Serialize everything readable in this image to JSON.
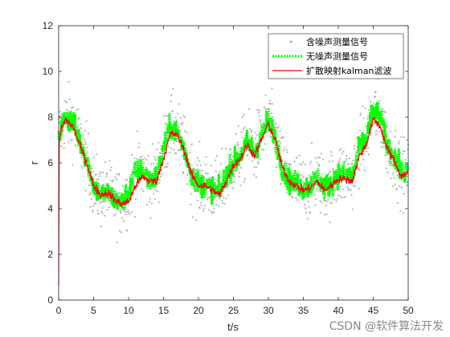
{
  "chart_data": {
    "type": "line",
    "xlabel": "t/s",
    "ylabel": "r",
    "xlim": [
      0,
      50
    ],
    "ylim": [
      0,
      12
    ],
    "xticks": [
      0,
      5,
      10,
      15,
      20,
      25,
      30,
      35,
      40,
      45,
      50
    ],
    "yticks": [
      0,
      2,
      4,
      6,
      8,
      10,
      12
    ],
    "grid": false,
    "legend_position": "top-right",
    "series": [
      {
        "name": "含噪声测量信号",
        "style": "scatter",
        "color": "#b4b4b4",
        "noise_amplitude": 1.3,
        "base": "无噪声测量信号"
      },
      {
        "name": "无噪声测量信号",
        "style": "dotted-line",
        "color": "#00ff00",
        "x": [
          0,
          1,
          2,
          3,
          4,
          5,
          6,
          7,
          8,
          9,
          10,
          11,
          12,
          13,
          14,
          15,
          16,
          17,
          18,
          19,
          20,
          21,
          22,
          23,
          24,
          25,
          26,
          27,
          28,
          29,
          30,
          31,
          32,
          33,
          34,
          35,
          36,
          37,
          38,
          39,
          40,
          41,
          42,
          43,
          44,
          45,
          46,
          47,
          48,
          49,
          50
        ],
        "y": [
          7.2,
          8.0,
          7.8,
          7.0,
          6.2,
          5.0,
          4.6,
          4.7,
          4.4,
          4.2,
          4.7,
          5.6,
          5.7,
          5.2,
          5.4,
          6.6,
          7.6,
          7.3,
          6.6,
          5.5,
          5.1,
          5.0,
          4.9,
          4.7,
          5.5,
          6.0,
          6.3,
          6.9,
          6.5,
          7.2,
          7.9,
          7.1,
          5.8,
          5.2,
          5.1,
          4.9,
          5.0,
          5.4,
          4.9,
          5.1,
          5.5,
          5.5,
          5.4,
          6.6,
          7.1,
          8.3,
          8.0,
          6.8,
          6.3,
          5.6,
          5.6
        ]
      },
      {
        "name": "扩散映射kalman滤波",
        "style": "line",
        "color": "#ff0000",
        "x": [
          0,
          0.1,
          0.3,
          1,
          2,
          3,
          4,
          5,
          6,
          7,
          8,
          9,
          10,
          11,
          12,
          13,
          14,
          15,
          16,
          17,
          18,
          19,
          20,
          21,
          22,
          23,
          24,
          25,
          26,
          27,
          28,
          29,
          30,
          31,
          32,
          33,
          34,
          35,
          36,
          37,
          38,
          39,
          40,
          41,
          42,
          43,
          44,
          45,
          46,
          47,
          48,
          49,
          50
        ],
        "y": [
          0.6,
          6.9,
          7.4,
          7.9,
          7.6,
          6.8,
          6.0,
          5.0,
          4.6,
          4.7,
          4.4,
          4.2,
          4.3,
          5.0,
          5.4,
          5.2,
          5.2,
          6.2,
          7.3,
          7.2,
          6.5,
          5.5,
          5.0,
          5.0,
          4.8,
          4.6,
          5.2,
          5.9,
          6.2,
          6.8,
          6.3,
          7.0,
          7.7,
          7.0,
          5.8,
          5.2,
          5.0,
          4.8,
          4.9,
          5.2,
          4.8,
          5.0,
          5.3,
          5.3,
          5.2,
          6.3,
          6.8,
          7.9,
          7.6,
          6.6,
          6.1,
          5.4,
          5.6
        ]
      }
    ]
  },
  "watermark": "CSDN @软件算法开发"
}
